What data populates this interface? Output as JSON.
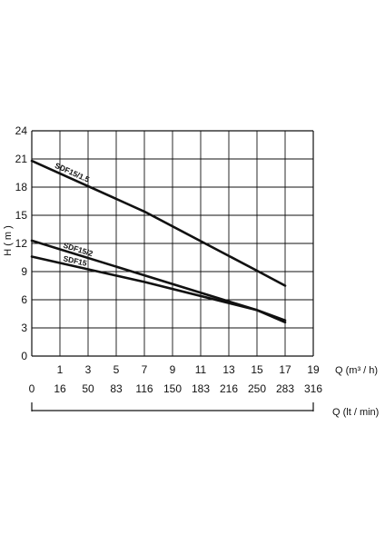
{
  "chart_data": {
    "type": "line",
    "ylabel": "H ( m )",
    "ylim": [
      0,
      24
    ],
    "yticks": [
      "24",
      "21",
      "18",
      "15",
      "12",
      "9",
      "6",
      "3",
      "0"
    ],
    "xlim": [
      -1,
      19
    ],
    "xlabel": "Q (m³ / h)",
    "xticks": [
      "1",
      "3",
      "5",
      "7",
      "9",
      "11",
      "13",
      "15",
      "17",
      "19"
    ],
    "xlabel2": "Q (lt / min)",
    "xticks2": [
      "0",
      "16",
      "50",
      "83",
      "116",
      "150",
      "183",
      "216",
      "250",
      "283",
      "316"
    ],
    "grid": true,
    "colors": {
      "series": "#111111",
      "grid": "#111111"
    },
    "series": [
      {
        "name": "SDF15/1.5",
        "x": [
          -1,
          7,
          15,
          17
        ],
        "y": [
          20.8,
          15.4,
          9.1,
          7.5
        ]
      },
      {
        "name": "SDF15/2",
        "x": [
          -1,
          7,
          15,
          17
        ],
        "y": [
          12.3,
          8.6,
          4.9,
          3.8
        ]
      },
      {
        "name": "SDF15",
        "x": [
          -1,
          7,
          15,
          17
        ],
        "y": [
          10.6,
          7.9,
          4.9,
          3.6
        ]
      }
    ]
  }
}
